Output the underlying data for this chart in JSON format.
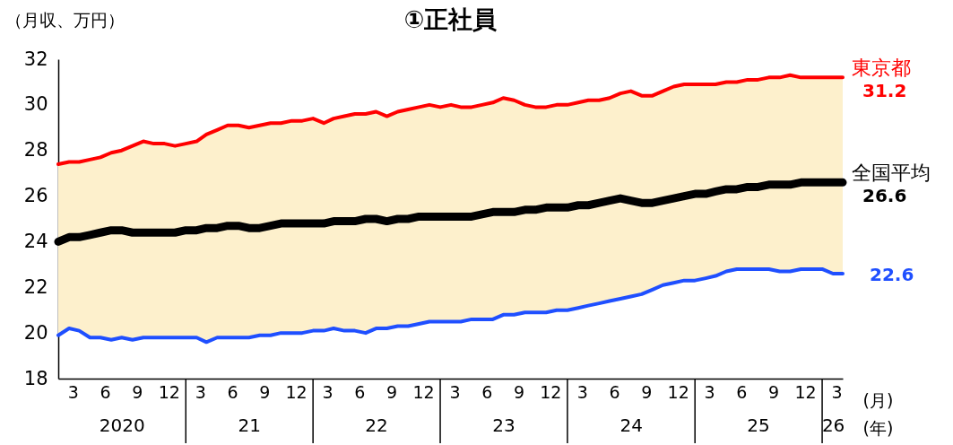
{
  "chart_data": {
    "type": "line",
    "title": "①正社員",
    "ylabel": "（月収、万円）",
    "xlabel": "(月)",
    "x2label": "(年)",
    "x": [
      "2020-01",
      "2020-02",
      "2020-03",
      "2020-04",
      "2020-05",
      "2020-06",
      "2020-07",
      "2020-08",
      "2020-09",
      "2020-10",
      "2020-11",
      "2020-12",
      "2021-01",
      "2021-02",
      "2021-03",
      "2021-04",
      "2021-05",
      "2021-06",
      "2021-07",
      "2021-08",
      "2021-09",
      "2021-10",
      "2021-11",
      "2021-12",
      "2022-01",
      "2022-02",
      "2022-03",
      "2022-04",
      "2022-05",
      "2022-06",
      "2022-07",
      "2022-08",
      "2022-09",
      "2022-10",
      "2022-11",
      "2022-12",
      "2023-01",
      "2023-02",
      "2023-03",
      "2023-04",
      "2023-05",
      "2023-06",
      "2023-07",
      "2023-08",
      "2023-09",
      "2023-10",
      "2023-11",
      "2023-12",
      "2024-01",
      "2024-02",
      "2024-03",
      "2024-04",
      "2024-05",
      "2024-06",
      "2024-07",
      "2024-08",
      "2024-09",
      "2024-10",
      "2024-11",
      "2024-12",
      "2025-01",
      "2025-02",
      "2025-03",
      "2025-04",
      "2025-05",
      "2025-06",
      "2025-07",
      "2025-08",
      "2025-09",
      "2025-10",
      "2025-11",
      "2025-12",
      "2026-01",
      "2026-02",
      "2026-03"
    ],
    "series": [
      {
        "name": "東京都",
        "color": "#ff0000",
        "values": [
          27.4,
          27.5,
          27.5,
          27.6,
          27.7,
          27.9,
          28.0,
          28.2,
          28.4,
          28.3,
          28.3,
          28.2,
          28.3,
          28.4,
          28.7,
          28.9,
          29.1,
          29.1,
          29.0,
          29.1,
          29.2,
          29.2,
          29.3,
          29.3,
          29.4,
          29.2,
          29.4,
          29.5,
          29.6,
          29.6,
          29.7,
          29.5,
          29.7,
          29.8,
          29.9,
          30.0,
          29.9,
          30.0,
          29.9,
          29.9,
          30.0,
          30.1,
          30.3,
          30.2,
          30.0,
          29.9,
          29.9,
          30.0,
          30.0,
          30.1,
          30.2,
          30.2,
          30.3,
          30.5,
          30.6,
          30.4,
          30.4,
          30.6,
          30.8,
          30.9,
          30.9,
          30.9,
          30.9,
          31.0,
          31.0,
          31.1,
          31.1,
          31.2,
          31.2,
          31.3,
          31.2,
          31.2,
          31.2,
          31.2,
          31.2
        ],
        "value_labels": [
          null,
          null,
          null,
          null,
          null,
          null,
          null,
          null,
          null,
          null,
          null,
          null,
          null,
          null,
          null,
          null,
          null,
          null,
          null,
          null,
          null,
          null,
          null,
          null,
          null,
          null,
          null,
          null,
          null,
          null,
          null,
          null,
          null,
          null,
          null,
          null,
          null,
          null,
          null,
          null,
          null,
          null,
          null,
          null,
          null,
          null,
          null,
          null,
          null,
          null,
          null,
          null,
          null,
          null,
          null,
          null,
          null,
          null,
          null,
          null,
          null,
          null,
          null,
          null,
          null,
          null,
          null,
          null,
          null,
          null,
          null,
          null,
          null,
          null,
          "31.2"
        ]
      },
      {
        "name": "全国平均",
        "color": "#000000",
        "values": [
          24.0,
          24.2,
          24.2,
          24.3,
          24.4,
          24.5,
          24.5,
          24.4,
          24.4,
          24.4,
          24.4,
          24.4,
          24.5,
          24.5,
          24.6,
          24.6,
          24.7,
          24.7,
          24.6,
          24.6,
          24.7,
          24.8,
          24.8,
          24.8,
          24.8,
          24.8,
          24.9,
          24.9,
          24.9,
          25.0,
          25.0,
          24.9,
          25.0,
          25.0,
          25.1,
          25.1,
          25.1,
          25.1,
          25.1,
          25.1,
          25.2,
          25.3,
          25.3,
          25.3,
          25.4,
          25.4,
          25.5,
          25.5,
          25.5,
          25.6,
          25.6,
          25.7,
          25.8,
          25.9,
          25.8,
          25.7,
          25.7,
          25.8,
          25.9,
          26.0,
          26.1,
          26.1,
          26.2,
          26.3,
          26.3,
          26.4,
          26.4,
          26.5,
          26.5,
          26.5,
          26.6,
          26.6,
          26.6,
          26.6,
          26.6
        ],
        "lower": [
          19.9,
          20.2,
          20.1,
          19.8,
          19.8,
          19.7,
          19.8,
          19.7,
          19.8,
          19.8,
          19.8,
          19.8,
          19.8,
          19.8,
          19.6,
          19.8,
          19.8,
          19.8,
          19.8,
          19.9,
          19.9,
          20.0,
          20.0,
          20.0,
          20.1,
          20.1,
          20.2,
          20.1,
          20.1,
          20.0,
          20.2,
          20.2,
          20.3,
          20.3,
          20.4,
          20.5,
          20.5,
          20.5,
          20.5,
          20.6,
          20.6,
          20.6,
          20.8,
          20.8,
          20.9,
          20.9,
          20.9,
          21.0,
          21.0,
          21.1,
          21.2,
          21.3,
          21.4,
          21.5,
          21.6,
          21.7,
          21.9,
          22.1,
          22.2,
          22.3,
          22.3,
          22.4,
          22.5,
          22.7,
          22.8,
          22.8,
          22.8,
          22.8,
          22.7,
          22.7,
          22.8,
          22.8,
          22.8,
          22.6,
          22.6
        ],
        "upper": [
          27.4,
          27.5,
          27.5,
          27.6,
          27.7,
          27.9,
          28.0,
          28.2,
          28.4,
          28.3,
          28.3,
          28.2,
          28.3,
          28.4,
          28.7,
          28.9,
          29.1,
          29.1,
          29.0,
          29.1,
          29.2,
          29.2,
          29.3,
          29.3,
          29.4,
          29.2,
          29.4,
          29.5,
          29.6,
          29.6,
          29.7,
          29.5,
          29.7,
          29.8,
          29.9,
          30.0,
          29.9,
          30.0,
          29.9,
          29.9,
          30.0,
          30.1,
          30.3,
          30.2,
          30.0,
          29.9,
          29.9,
          30.0,
          30.0,
          30.1,
          30.2,
          30.2,
          30.3,
          30.5,
          30.6,
          30.4,
          30.4,
          30.6,
          30.8,
          30.9,
          30.9,
          30.9,
          30.9,
          31.0,
          31.0,
          31.1,
          31.1,
          31.2,
          31.2,
          31.3,
          31.2,
          31.2,
          31.2,
          31.2,
          31.2
        ],
        "value_labels": [
          null,
          null,
          null,
          null,
          null,
          null,
          null,
          null,
          null,
          null,
          null,
          null,
          null,
          null,
          null,
          null,
          null,
          null,
          null,
          null,
          null,
          null,
          null,
          null,
          null,
          null,
          null,
          null,
          null,
          null,
          null,
          null,
          null,
          null,
          null,
          null,
          null,
          null,
          null,
          null,
          null,
          null,
          null,
          null,
          null,
          null,
          null,
          null,
          null,
          null,
          null,
          null,
          null,
          null,
          null,
          null,
          null,
          null,
          null,
          null,
          null,
          null,
          null,
          null,
          null,
          null,
          null,
          null,
          null,
          null,
          null,
          null,
          null,
          null,
          "26.6"
        ]
      },
      {
        "color": "#1f4fff",
        "values": [
          19.9,
          20.2,
          20.1,
          19.8,
          19.8,
          19.7,
          19.8,
          19.7,
          19.8,
          19.8,
          19.8,
          19.8,
          19.8,
          19.8,
          19.6,
          19.8,
          19.8,
          19.8,
          19.8,
          19.9,
          19.9,
          20.0,
          20.0,
          20.0,
          20.1,
          20.1,
          20.2,
          20.1,
          20.1,
          20.0,
          20.2,
          20.2,
          20.3,
          20.3,
          20.4,
          20.5,
          20.5,
          20.5,
          20.5,
          20.6,
          20.6,
          20.6,
          20.8,
          20.8,
          20.9,
          20.9,
          20.9,
          21.0,
          21.0,
          21.1,
          21.2,
          21.3,
          21.4,
          21.5,
          21.6,
          21.7,
          21.9,
          22.1,
          22.2,
          22.3,
          22.3,
          22.4,
          22.5,
          22.7,
          22.8,
          22.8,
          22.8,
          22.8,
          22.7,
          22.7,
          22.8,
          22.8,
          22.8,
          22.6,
          22.6
        ],
        "value_labels": [
          null,
          null,
          null,
          null,
          null,
          null,
          null,
          null,
          null,
          null,
          null,
          null,
          null,
          null,
          null,
          null,
          null,
          null,
          null,
          null,
          null,
          null,
          null,
          null,
          null,
          null,
          null,
          null,
          null,
          null,
          null,
          null,
          null,
          null,
          null,
          null,
          null,
          null,
          null,
          null,
          null,
          null,
          null,
          null,
          null,
          null,
          null,
          null,
          null,
          null,
          null,
          null,
          null,
          null,
          null,
          null,
          null,
          null,
          null,
          null,
          null,
          null,
          null,
          null,
          null,
          null,
          null,
          null,
          null,
          null,
          null,
          null,
          null,
          null,
          "22.6"
        ]
      }
    ],
    "xlim": [
      "2020-01",
      "2026-03"
    ],
    "xticks": [
      {
        "value": "2020-03",
        "label": "3"
      },
      {
        "value": "2020-06",
        "label": "6"
      },
      {
        "value": "2020-09",
        "label": "9"
      },
      {
        "value": "2020-12",
        "label": "12"
      },
      {
        "value": "2021-03",
        "label": "3"
      },
      {
        "value": "2021-06",
        "label": "6"
      },
      {
        "value": "2021-09",
        "label": "9"
      },
      {
        "value": "2021-12",
        "label": "12"
      },
      {
        "value": "2022-03",
        "label": "3"
      },
      {
        "value": "2022-06",
        "label": "6"
      },
      {
        "value": "2022-09",
        "label": "9"
      },
      {
        "value": "2022-12",
        "label": "12"
      },
      {
        "value": "2023-03",
        "label": "3"
      },
      {
        "value": "2023-06",
        "label": "6"
      },
      {
        "value": "2023-09",
        "label": "9"
      },
      {
        "value": "2023-12",
        "label": "12"
      },
      {
        "value": "2024-03",
        "label": "3"
      },
      {
        "value": "2024-06",
        "label": "6"
      },
      {
        "value": "2024-09",
        "label": "9"
      },
      {
        "value": "2024-12",
        "label": "12"
      },
      {
        "value": "2025-03",
        "label": "3"
      },
      {
        "value": "2025-06",
        "label": "6"
      },
      {
        "value": "2025-09",
        "label": "9"
      },
      {
        "value": "2025-12",
        "label": "12"
      },
      {
        "value": "2026-03",
        "label": "3"
      }
    ],
    "x2lim": [
      "2020-01",
      "2026-03"
    ],
    "x2ticks": [
      {
        "value": "2020-07",
        "label": "2020"
      },
      {
        "value": "2021-07",
        "label": "21"
      },
      {
        "value": "2022-07",
        "label": "22"
      },
      {
        "value": "2023-07",
        "label": "23"
      },
      {
        "value": "2024-07",
        "label": "24"
      },
      {
        "value": "2025-07",
        "label": "25"
      },
      {
        "value": "2026-02",
        "label": "26"
      }
    ],
    "ylim": [
      18,
      32
    ],
    "yticks": [
      18,
      20,
      22,
      24,
      26,
      28,
      30,
      32
    ],
    "grid": false,
    "line_style": "solid",
    "marker": "none"
  }
}
